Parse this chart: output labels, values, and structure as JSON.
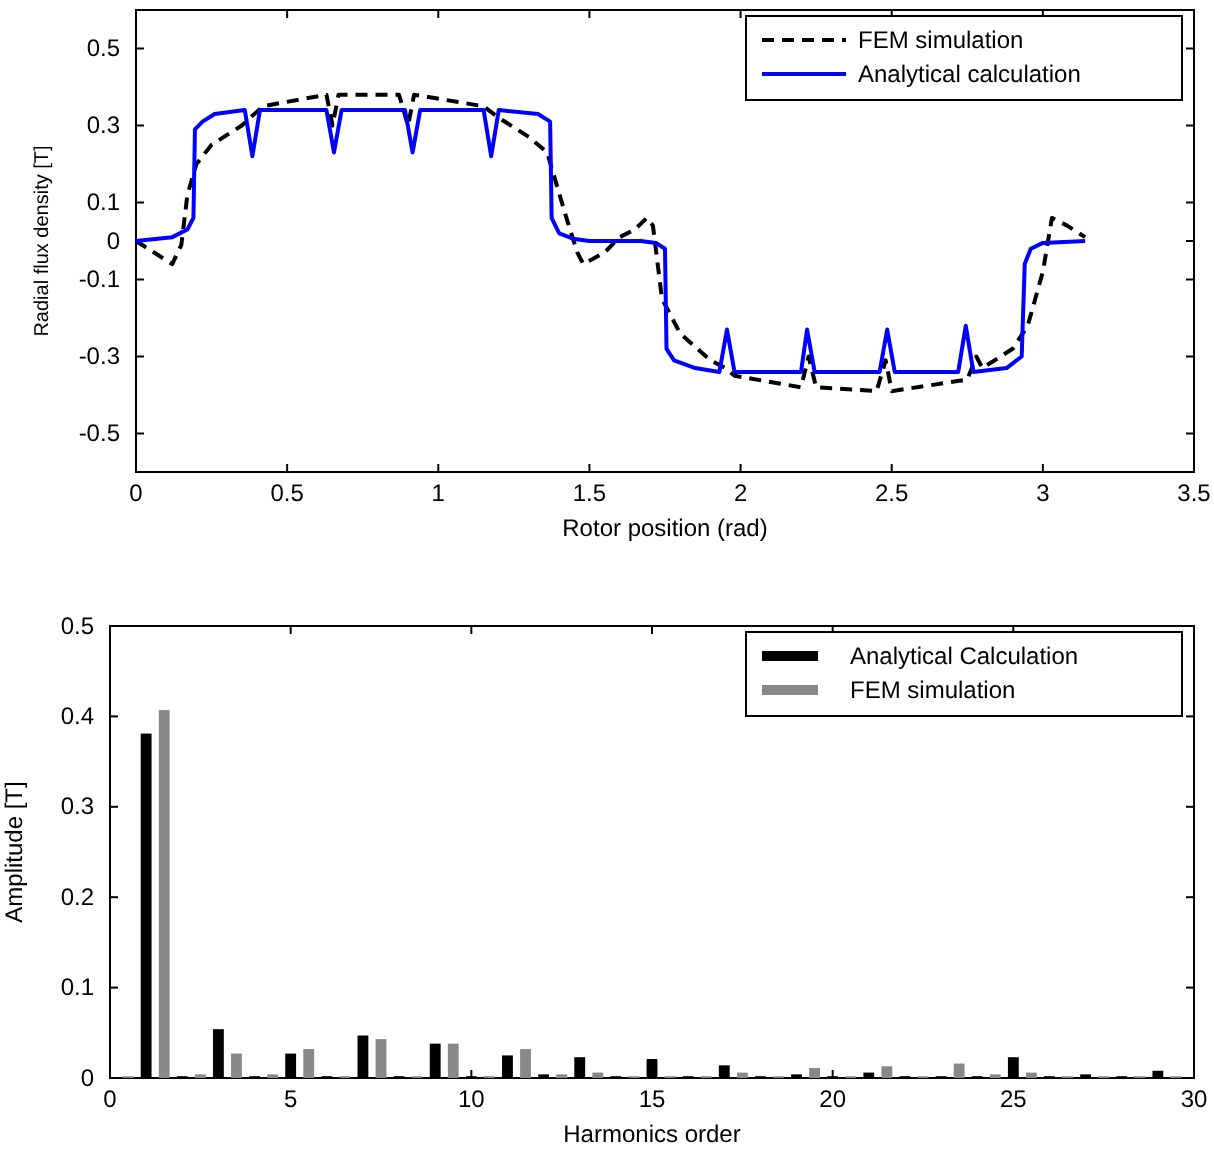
{
  "chart_data": [
    {
      "type": "line",
      "xlabel": "Rotor position (rad)",
      "ylabel": "Radial flux density [T]",
      "xlim": [
        0,
        3.5
      ],
      "xticks": [
        0,
        0.5,
        1,
        1.5,
        2,
        2.5,
        3,
        3.5
      ],
      "ylim": [
        -0.6,
        0.6
      ],
      "yticks": [
        -0.5,
        -0.3,
        -0.1,
        0,
        0.1,
        0.3,
        0.5
      ],
      "grid": false,
      "legend": "top right",
      "series": [
        {
          "name": "FEM simulation",
          "color": "#000000",
          "line_style": "dashed",
          "x": [
            0,
            0.06,
            0.12,
            0.15,
            0.17,
            0.2,
            0.25,
            0.35,
            0.42,
            0.63,
            0.65,
            0.67,
            0.87,
            0.9,
            0.92,
            1.15,
            1.2,
            1.3,
            1.36,
            1.42,
            1.46,
            1.48,
            1.55,
            1.6,
            1.65,
            1.69,
            1.71,
            1.74,
            1.8,
            1.9,
            1.95,
            1.98,
            2.2,
            2.225,
            2.25,
            2.45,
            2.48,
            2.5,
            2.75,
            2.78,
            2.8,
            2.9,
            2.95,
            3.0,
            3.03,
            3.08,
            3.14
          ],
          "values": [
            0,
            -0.03,
            -0.06,
            -0.01,
            0.12,
            0.2,
            0.25,
            0.3,
            0.35,
            0.38,
            0.3,
            0.38,
            0.38,
            0.3,
            0.38,
            0.35,
            0.32,
            0.27,
            0.23,
            0.07,
            -0.03,
            -0.06,
            -0.03,
            0.01,
            0.03,
            0.06,
            0.04,
            -0.15,
            -0.24,
            -0.31,
            -0.33,
            -0.35,
            -0.38,
            -0.3,
            -0.38,
            -0.39,
            -0.31,
            -0.39,
            -0.36,
            -0.3,
            -0.33,
            -0.28,
            -0.22,
            -0.08,
            0.06,
            0.04,
            0.01
          ]
        },
        {
          "name": "Analytical calculation",
          "color": "#0000ff",
          "line_style": "solid",
          "x": [
            0,
            0.12,
            0.17,
            0.19,
            0.195,
            0.22,
            0.26,
            0.36,
            0.385,
            0.41,
            0.63,
            0.655,
            0.68,
            0.89,
            0.915,
            0.94,
            1.15,
            1.175,
            1.2,
            1.33,
            1.37,
            1.375,
            1.4,
            1.45,
            1.5,
            1.67,
            1.72,
            1.75,
            1.755,
            1.78,
            1.85,
            1.93,
            1.955,
            1.98,
            2.2,
            2.22,
            2.245,
            2.46,
            2.485,
            2.51,
            2.72,
            2.745,
            2.77,
            2.88,
            2.93,
            2.94,
            2.96,
            3.0,
            3.14
          ],
          "values": [
            0,
            0.01,
            0.03,
            0.06,
            0.29,
            0.31,
            0.33,
            0.34,
            0.22,
            0.34,
            0.34,
            0.23,
            0.34,
            0.34,
            0.23,
            0.34,
            0.34,
            0.22,
            0.34,
            0.33,
            0.31,
            0.06,
            0.02,
            0.005,
            0,
            0,
            -0.005,
            -0.02,
            -0.28,
            -0.31,
            -0.33,
            -0.34,
            -0.23,
            -0.34,
            -0.34,
            -0.23,
            -0.34,
            -0.34,
            -0.23,
            -0.34,
            -0.34,
            -0.22,
            -0.34,
            -0.33,
            -0.3,
            -0.06,
            -0.02,
            -0.005,
            0
          ]
        }
      ]
    },
    {
      "type": "bar",
      "xlabel": "Harmonics order",
      "ylabel": "Amplitude [T]",
      "xlim": [
        0,
        30
      ],
      "xticks": [
        0,
        5,
        10,
        15,
        20,
        25,
        30
      ],
      "ylim": [
        0,
        0.5
      ],
      "yticks": [
        0,
        0.1,
        0.2,
        0.3,
        0.4,
        0.5
      ],
      "grid": false,
      "legend": "top right",
      "series": [
        {
          "name": "Analytical Calculation",
          "color": "#000000",
          "x": [
            1,
            2,
            3,
            4,
            5,
            6,
            7,
            8,
            9,
            10,
            11,
            12,
            13,
            14,
            15,
            16,
            17,
            18,
            19,
            20,
            21,
            22,
            23,
            24,
            25,
            26,
            27,
            28,
            29
          ],
          "values": [
            0.381,
            0.002,
            0.054,
            0.002,
            0.027,
            0.002,
            0.047,
            0.002,
            0.038,
            0.002,
            0.025,
            0.004,
            0.023,
            0.002,
            0.021,
            0.002,
            0.014,
            0.002,
            0.004,
            0.002,
            0.006,
            0.002,
            0.002,
            0.002,
            0.023,
            0.002,
            0.004,
            0.002,
            0.008
          ]
        },
        {
          "name": "FEM simulation",
          "color": "#888888",
          "x": [
            0.5,
            1.5,
            2.5,
            3.5,
            4.5,
            5.5,
            6.5,
            7.5,
            8.5,
            9.5,
            10.5,
            11.5,
            12.5,
            13.5,
            14.5,
            15.5,
            16.5,
            17.5,
            18.5,
            19.5,
            20.5,
            21.5,
            22.5,
            23.5,
            24.5,
            25.5,
            26.5,
            27.5,
            28.5,
            29.5
          ],
          "values": [
            0.002,
            0.407,
            0.004,
            0.027,
            0.004,
            0.032,
            0.002,
            0.043,
            0.002,
            0.038,
            0.002,
            0.032,
            0.004,
            0.006,
            0.002,
            0.002,
            0.002,
            0.006,
            0.002,
            0.011,
            0.002,
            0.013,
            0.002,
            0.016,
            0.004,
            0.006,
            0.002,
            0.002,
            0.002,
            0.002
          ]
        }
      ]
    }
  ]
}
